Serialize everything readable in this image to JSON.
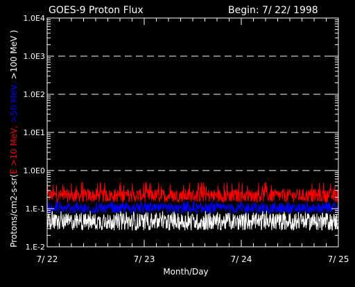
{
  "header": {
    "title": "GOES-9 Proton Flux",
    "begin": "Begin: 7/ 22/ 1998"
  },
  "chart_data": {
    "type": "line",
    "scale": "log",
    "ylim": [
      0.01,
      10000
    ],
    "xlim": [
      0,
      3
    ],
    "yticks": [
      {
        "value": 0.01,
        "label": "1.E-2"
      },
      {
        "value": 0.1,
        "label": "1.E-1"
      },
      {
        "value": 1,
        "label": "1.0E0"
      },
      {
        "value": 10,
        "label": "1.0E1"
      },
      {
        "value": 100,
        "label": "1.0E2"
      },
      {
        "value": 1000,
        "label": "1.0E3"
      },
      {
        "value": 10000,
        "label": "1.0E4"
      }
    ],
    "xticks": [
      {
        "value": 0,
        "label": "7/ 22"
      },
      {
        "value": 1,
        "label": "7/ 23"
      },
      {
        "value": 2,
        "label": "7/ 24"
      },
      {
        "value": 3,
        "label": "7/ 25"
      }
    ],
    "xlabel": "Month/Day",
    "ylabel_parts": [
      {
        "text": "Protons/cm2-s-sr(",
        "color": "#ffffff"
      },
      {
        "text": "E >10 MeV,",
        "color": "#ff0000"
      },
      {
        "text": " >50 MeV,",
        "color": "#0000ff"
      },
      {
        "text": " >100 MeV )",
        "color": "#ffffff"
      }
    ],
    "grid_dashed_at": [
      1,
      10,
      100,
      1000
    ],
    "series": [
      {
        "name": "E >10 MeV",
        "color": "#ff0000",
        "baseline": 0.22,
        "spread": 0.35,
        "peak": 0.5
      },
      {
        "name": ">50 MeV",
        "color": "#0000ff",
        "baseline": 0.1,
        "spread": 0.25,
        "peak": 0.16
      },
      {
        "name": ">100 MeV",
        "color": "#ffffff",
        "baseline": 0.045,
        "spread": 0.45,
        "peak": 0.09
      }
    ]
  }
}
